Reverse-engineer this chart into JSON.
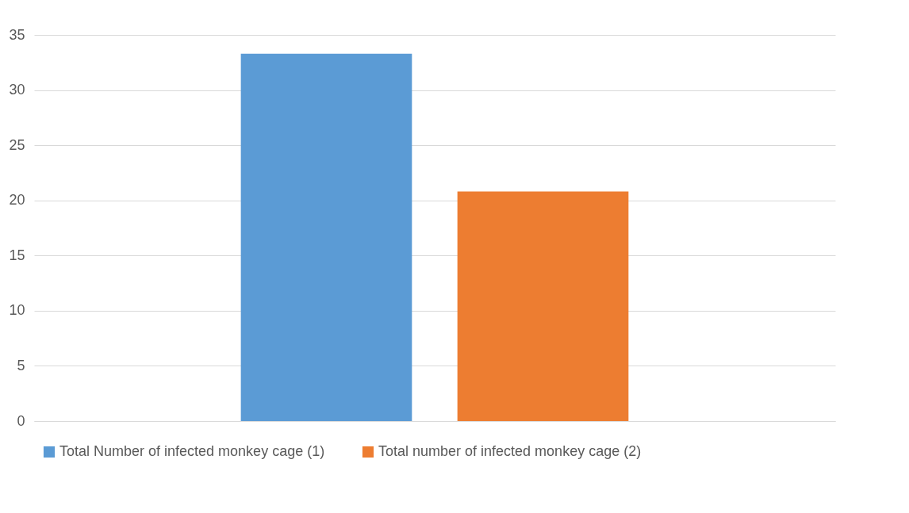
{
  "chart_data": {
    "type": "bar",
    "categories": [
      null
    ],
    "series": [
      {
        "name": "Total Number of infected monkey cage  (1)",
        "color": "#5b9bd5",
        "values": [
          33.3
        ]
      },
      {
        "name": "Total number of infected monkey cage (2)",
        "color": "#ed7d31",
        "values": [
          20.8
        ]
      }
    ],
    "ylim": [
      0,
      35
    ],
    "yticks": [
      0,
      5,
      10,
      15,
      20,
      25,
      30,
      35
    ],
    "grid": "y",
    "legend": "bottom"
  }
}
